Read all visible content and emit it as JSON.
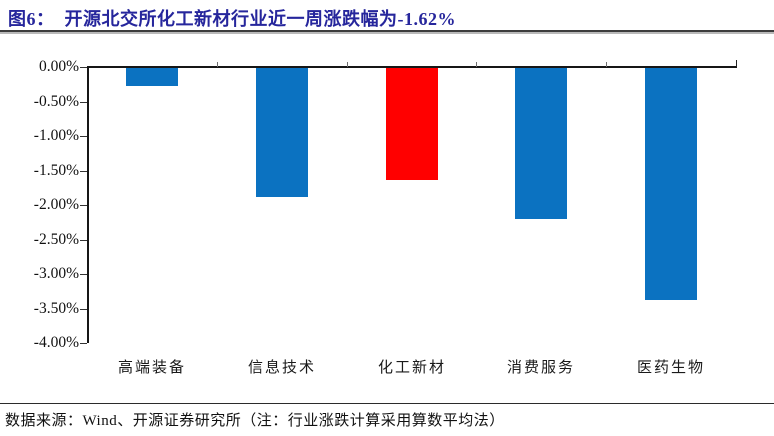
{
  "header": {
    "figure_label": "图6：",
    "title": "开源北交所化工新材行业近一周涨跌幅为-1.62%"
  },
  "footer": {
    "text": "数据来源：Wind、开源证券研究所（注：行业涨跌计算采用算数平均法）"
  },
  "colors": {
    "title_text": "#26269C",
    "bar_default": "#0B72C1",
    "bar_highlight": "#FF0000",
    "axis": "#161616"
  },
  "chart_data": {
    "type": "bar",
    "title": "开源北交所化工新材行业近一周涨跌幅为-1.62%",
    "categories": [
      "高端装备",
      "信息技术",
      "化工新材",
      "消费服务",
      "医药生物"
    ],
    "values": [
      -0.26,
      -1.87,
      -1.62,
      -2.19,
      -3.36
    ],
    "bar_colors": [
      "#0B72C1",
      "#0B72C1",
      "#FF0000",
      "#0B72C1",
      "#0B72C1"
    ],
    "highlight_category": "化工新材",
    "highlight_value_label": "-1.62%",
    "xlabel": "",
    "ylabel": "",
    "ylim": [
      0,
      -4
    ],
    "ytick_labels": [
      "0.00%",
      "-0.50%",
      "-1.00%",
      "-1.50%",
      "-2.00%",
      "-2.50%",
      "-3.00%",
      "-3.50%",
      "-4.00%"
    ],
    "grid": false,
    "legend": null
  }
}
